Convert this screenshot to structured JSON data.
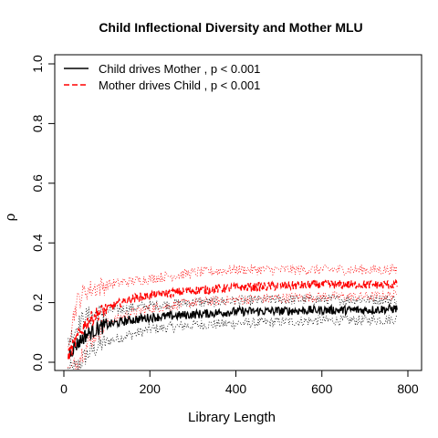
{
  "chart_data": {
    "type": "line",
    "title": "Child Inflectional Diversity and Mother MLU",
    "xlabel": "Library Length",
    "ylabel": "ρ",
    "xlim": [
      0,
      800
    ],
    "ylim": [
      0,
      1.0
    ],
    "x_ticks": [
      0,
      200,
      400,
      600,
      800
    ],
    "y_ticks": [
      0.0,
      0.2,
      0.4,
      0.6,
      0.8,
      1.0
    ],
    "x_tick_labels": [
      "0",
      "200",
      "400",
      "600",
      "800"
    ],
    "y_tick_labels": [
      "0.0",
      "0.2",
      "0.4",
      "0.6",
      "0.8",
      "1.0"
    ],
    "grid": false,
    "legend_position": "top-left",
    "x_samples": [
      10,
      30,
      50,
      75,
      100,
      150,
      200,
      300,
      400,
      500,
      600,
      700,
      775
    ],
    "series": [
      {
        "name": "Child drives Mother , p < 0.001",
        "color": "#000000",
        "line_style": "solid",
        "values": [
          0.03,
          0.06,
          0.09,
          0.11,
          0.125,
          0.14,
          0.15,
          0.16,
          0.17,
          0.172,
          0.175,
          0.175,
          0.18
        ],
        "band_lower": [
          -0.03,
          -0.02,
          0.02,
          0.05,
          0.07,
          0.09,
          0.11,
          0.125,
          0.13,
          0.135,
          0.14,
          0.14,
          0.145
        ],
        "band_upper": [
          0.07,
          0.12,
          0.15,
          0.16,
          0.17,
          0.18,
          0.19,
          0.2,
          0.205,
          0.21,
          0.21,
          0.21,
          0.21
        ]
      },
      {
        "name": "Mother drives Child , p < 0.001",
        "color": "#ff0000",
        "line_style": "dashed",
        "values": [
          0.02,
          0.08,
          0.13,
          0.16,
          0.18,
          0.21,
          0.225,
          0.24,
          0.25,
          0.255,
          0.26,
          0.26,
          0.26
        ],
        "band_lower": [
          -0.04,
          0.0,
          0.05,
          0.1,
          0.13,
          0.16,
          0.18,
          0.2,
          0.21,
          0.215,
          0.22,
          0.22,
          0.225
        ],
        "band_upper": [
          0.08,
          0.2,
          0.24,
          0.25,
          0.26,
          0.27,
          0.28,
          0.3,
          0.31,
          0.31,
          0.31,
          0.31,
          0.31
        ]
      }
    ]
  }
}
